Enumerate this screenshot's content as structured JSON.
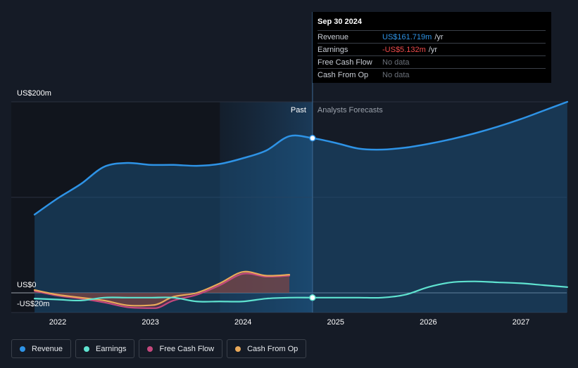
{
  "chart_data": {
    "type": "line",
    "y_unit_label_top": "US$200m",
    "y_zero_label": "US$0",
    "y_bottom_label": "-US$20m",
    "ylim": [
      -20,
      200
    ],
    "xlim": [
      2021.7,
      2027.5
    ],
    "x_ticks": [
      "2022",
      "2023",
      "2024",
      "2025",
      "2026",
      "2027"
    ],
    "x_tick_values": [
      2022,
      2023,
      2024,
      2025,
      2026,
      2027
    ],
    "past_label": "Past",
    "forecast_label": "Analysts Forecasts",
    "divider_x": 2024.75,
    "highlight_band": [
      2023.75,
      2024.75
    ],
    "series": [
      {
        "name": "Revenue",
        "color": "#2e93e6",
        "points": [
          [
            2021.75,
            82
          ],
          [
            2022,
            99
          ],
          [
            2022.25,
            114
          ],
          [
            2022.5,
            132
          ],
          [
            2022.75,
            136
          ],
          [
            2023,
            134
          ],
          [
            2023.25,
            134
          ],
          [
            2023.5,
            133
          ],
          [
            2023.75,
            135
          ],
          [
            2024,
            141
          ],
          [
            2024.25,
            149
          ],
          [
            2024.5,
            164
          ],
          [
            2024.75,
            162
          ],
          [
            2025,
            157
          ],
          [
            2025.25,
            151
          ],
          [
            2025.5,
            150
          ],
          [
            2025.75,
            152
          ],
          [
            2026,
            156
          ],
          [
            2026.25,
            161
          ],
          [
            2026.5,
            167
          ],
          [
            2026.75,
            174
          ],
          [
            2027,
            182
          ],
          [
            2027.25,
            191
          ],
          [
            2027.5,
            200
          ]
        ]
      },
      {
        "name": "Earnings",
        "color": "#5fe3d0",
        "points": [
          [
            2021.75,
            -6
          ],
          [
            2022,
            -7
          ],
          [
            2022.25,
            -8
          ],
          [
            2022.5,
            -5
          ],
          [
            2022.75,
            -5
          ],
          [
            2023,
            -5
          ],
          [
            2023.25,
            -5
          ],
          [
            2023.5,
            -9
          ],
          [
            2023.75,
            -9
          ],
          [
            2024,
            -9
          ],
          [
            2024.25,
            -6
          ],
          [
            2024.5,
            -5
          ],
          [
            2024.75,
            -5
          ],
          [
            2025,
            -5
          ],
          [
            2025.25,
            -5
          ],
          [
            2025.5,
            -5
          ],
          [
            2025.75,
            -2
          ],
          [
            2026,
            6
          ],
          [
            2026.25,
            11
          ],
          [
            2026.5,
            12
          ],
          [
            2026.75,
            11
          ],
          [
            2027,
            10
          ],
          [
            2027.25,
            8
          ],
          [
            2027.5,
            6
          ]
        ]
      },
      {
        "name": "Free Cash Flow",
        "color": "#c4487d",
        "points": [
          [
            2021.75,
            2
          ],
          [
            2022,
            -3
          ],
          [
            2022.25,
            -6
          ],
          [
            2022.5,
            -10
          ],
          [
            2022.75,
            -15
          ],
          [
            2023,
            -16
          ],
          [
            2023.1,
            -15
          ],
          [
            2023.25,
            -8
          ],
          [
            2023.5,
            -2
          ],
          [
            2023.75,
            8
          ],
          [
            2024,
            20
          ],
          [
            2024.25,
            17
          ],
          [
            2024.5,
            18
          ]
        ]
      },
      {
        "name": "Cash From Op",
        "color": "#e9a95a",
        "points": [
          [
            2021.75,
            3
          ],
          [
            2022,
            -2
          ],
          [
            2022.25,
            -5
          ],
          [
            2022.5,
            -8
          ],
          [
            2022.75,
            -13
          ],
          [
            2023,
            -13
          ],
          [
            2023.1,
            -11
          ],
          [
            2023.25,
            -4
          ],
          [
            2023.5,
            0
          ],
          [
            2023.75,
            10
          ],
          [
            2024,
            22
          ],
          [
            2024.25,
            18
          ],
          [
            2024.5,
            19
          ]
        ]
      }
    ]
  },
  "tooltip": {
    "date": "Sep 30 2024",
    "rows": [
      {
        "label": "Revenue",
        "value": "US$161.719m",
        "unit": "/yr",
        "color": "#2e93e6"
      },
      {
        "label": "Earnings",
        "value": "-US$5.132m",
        "unit": "/yr",
        "color": "#f04b4b"
      },
      {
        "label": "Free Cash Flow",
        "value": "No data",
        "unit": "",
        "color": "#6b717a"
      },
      {
        "label": "Cash From Op",
        "value": "No data",
        "unit": "",
        "color": "#6b717a"
      }
    ]
  },
  "legend": [
    {
      "label": "Revenue",
      "color": "#2e93e6"
    },
    {
      "label": "Earnings",
      "color": "#5fe3d0"
    },
    {
      "label": "Free Cash Flow",
      "color": "#c4487d"
    },
    {
      "label": "Cash From Op",
      "color": "#e9a95a"
    }
  ]
}
